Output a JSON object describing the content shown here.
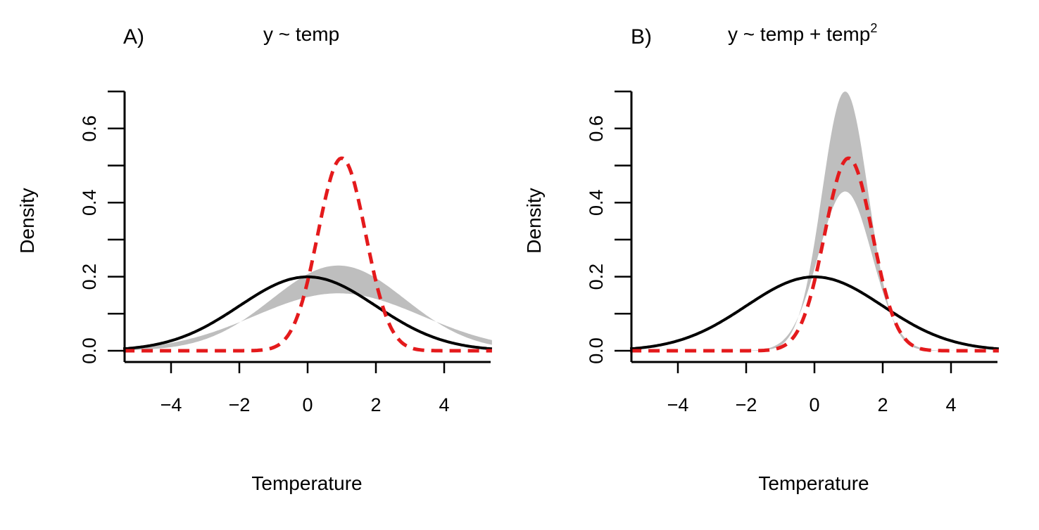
{
  "figure": {
    "background": "#ffffff",
    "band_color": "#bebebe",
    "true_color": "#000000",
    "estimate_color": "#e41a1c"
  },
  "chart_data": [
    {
      "type": "line",
      "panel_label": "A)",
      "title_prefix": "y ~ temp",
      "title_superscript": "",
      "xlabel": "Temperature",
      "ylabel": "Density",
      "xlim": [
        -5.4,
        5.4
      ],
      "ylim": [
        -0.03,
        0.72
      ],
      "xticks": [
        -4,
        -2,
        0,
        2,
        4
      ],
      "xtick_labels": [
        "−4",
        "−2",
        "0",
        "2",
        "4"
      ],
      "yticks": [
        0.0,
        0.1,
        0.2,
        0.3,
        0.4,
        0.5,
        0.6,
        0.7
      ],
      "ytick_labels": [
        "0.0",
        "",
        "0.2",
        "",
        "0.4",
        "",
        "0.6",
        ""
      ],
      "series": [
        {
          "name": "band",
          "style": "band",
          "center": 0.9,
          "lower_sd": 2.45,
          "lower_peak": 0.155,
          "upper_sd": 1.95,
          "upper_peak": 0.23
        },
        {
          "name": "true",
          "style": "solid",
          "center": 0.0,
          "sd": 2.0
        },
        {
          "name": "estimate",
          "style": "dashed",
          "center": 1.0,
          "sd": 0.7,
          "peak": 0.52
        }
      ]
    },
    {
      "type": "line",
      "panel_label": "B)",
      "title_prefix": "y ~ temp + temp",
      "title_superscript": "2",
      "xlabel": "Temperature",
      "ylabel": "Density",
      "xlim": [
        -5.4,
        5.4
      ],
      "ylim": [
        -0.03,
        0.72
      ],
      "xticks": [
        -4,
        -2,
        0,
        2,
        4
      ],
      "xtick_labels": [
        "−4",
        "−2",
        "0",
        "2",
        "4"
      ],
      "yticks": [
        0.0,
        0.1,
        0.2,
        0.3,
        0.4,
        0.5,
        0.6,
        0.7
      ],
      "ytick_labels": [
        "0.0",
        "",
        "0.2",
        "",
        "0.4",
        "",
        "0.6",
        ""
      ],
      "series": [
        {
          "name": "band",
          "style": "band",
          "center": 0.9,
          "lower_sd": 0.78,
          "lower_peak": 0.43,
          "upper_sd": 0.68,
          "upper_peak": 0.7
        },
        {
          "name": "true",
          "style": "solid",
          "center": 0.0,
          "sd": 2.0
        },
        {
          "name": "estimate",
          "style": "dashed",
          "center": 1.0,
          "sd": 0.7,
          "peak": 0.52
        }
      ]
    }
  ]
}
